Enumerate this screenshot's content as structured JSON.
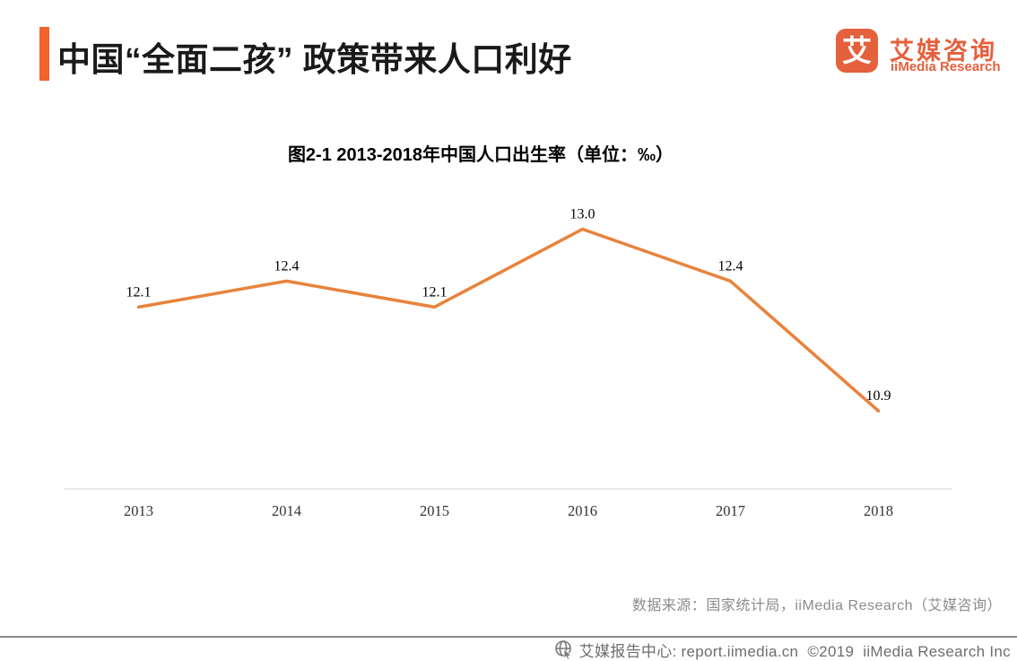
{
  "header": {
    "title": "中国“全面二孩” 政策带来人口利好",
    "logo": {
      "symbol": "艾",
      "name_cn": "艾媒咨询",
      "name_en": "iiMedia Research"
    }
  },
  "chart": {
    "title": "图2-1 2013-2018年中国人口出生率（单位：‰）",
    "source": "数据来源：国家统计局，iiMedia Research（艾媒咨询）"
  },
  "chart_data": {
    "type": "line",
    "title": "图2-1 2013-2018年中国人口出生率（单位：‰）",
    "categories": [
      "2013",
      "2014",
      "2015",
      "2016",
      "2017",
      "2018"
    ],
    "values": [
      12.1,
      12.4,
      12.1,
      13.0,
      12.4,
      10.9
    ],
    "unit": "‰",
    "xlabel": "",
    "ylabel": "",
    "ylim": [
      10,
      13.5
    ],
    "grid": false,
    "legend": false,
    "data_labels": true,
    "line_color": "#E8833C",
    "axis_color": "#D9D9D9"
  },
  "footer": {
    "icon": "globe-cursor-icon",
    "text": "艾媒报告中心: report.iimedia.cn  ©2019  iiMedia Research Inc"
  },
  "colors": {
    "accent_bar": "#F4632A",
    "brand": "#E5603C",
    "line": "#E8833C",
    "gray_text": "#8C8C8C",
    "footer_text": "#6E6E6E"
  }
}
